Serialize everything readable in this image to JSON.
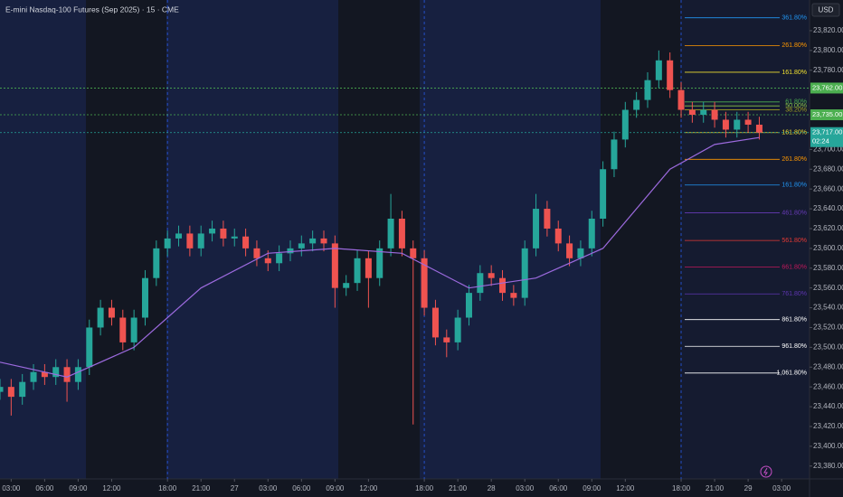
{
  "chart_data": {
    "type": "candlestick",
    "title": "E-mini Nasdaq-100 Futures (Sep 2025) · 15 · CME",
    "currency": "USD",
    "up_color": "#26a69a",
    "down_color": "#ef5350",
    "x": [
      -1,
      0,
      1,
      2,
      3,
      4,
      5,
      6,
      7,
      8,
      9,
      10,
      11,
      12,
      13,
      14,
      15,
      16,
      17,
      18,
      19,
      20,
      21,
      22,
      23,
      24,
      25,
      26,
      27,
      28,
      29,
      30,
      31,
      32,
      33,
      34,
      35,
      36,
      37,
      38,
      39,
      40,
      41,
      42,
      43,
      44,
      45,
      46,
      47,
      48,
      49,
      50,
      51,
      52,
      53,
      54,
      55,
      56,
      57,
      58,
      59,
      60,
      61,
      62,
      63,
      64,
      65,
      66,
      67
    ],
    "open": [
      23455,
      23460,
      23450,
      23465,
      23475,
      23470,
      23480,
      23465,
      23480,
      23520,
      23540,
      23530,
      23505,
      23530,
      23570,
      23600,
      23610,
      23615,
      23600,
      23615,
      23620,
      23610,
      23612,
      23600,
      23590,
      23585,
      23595,
      23600,
      23605,
      23610,
      23605,
      23560,
      23565,
      23590,
      23570,
      23600,
      23630,
      23600,
      23590,
      23540,
      23510,
      23505,
      23530,
      23555,
      23575,
      23570,
      23555,
      23550,
      23600,
      23640,
      23620,
      23605,
      23590,
      23600,
      23630,
      23680,
      23710,
      23740,
      23750,
      23770,
      23790,
      23760,
      23740,
      23735,
      23740,
      23730,
      23720,
      23730,
      23725
    ],
    "high": [
      23468,
      23468,
      23473,
      23483,
      23483,
      23488,
      23488,
      23488,
      23528,
      23548,
      23548,
      23538,
      23538,
      23578,
      23608,
      23618,
      23623,
      23623,
      23623,
      23628,
      23628,
      23620,
      23620,
      23608,
      23598,
      23603,
      23608,
      23613,
      23618,
      23618,
      23613,
      23573,
      23598,
      23598,
      23608,
      23655,
      23638,
      23608,
      23598,
      23548,
      23518,
      23538,
      23563,
      23583,
      23583,
      23578,
      23563,
      23608,
      23655,
      23648,
      23628,
      23613,
      23608,
      23638,
      23688,
      23718,
      23748,
      23758,
      23778,
      23800,
      23798,
      23768,
      23748,
      23748,
      23748,
      23738,
      23738,
      23738,
      23733
    ],
    "low": [
      23447,
      23431,
      23442,
      23457,
      23462,
      23462,
      23445,
      23457,
      23472,
      23512,
      23522,
      23497,
      23497,
      23522,
      23562,
      23592,
      23602,
      23592,
      23592,
      23607,
      23602,
      23602,
      23592,
      23582,
      23577,
      23577,
      23587,
      23592,
      23597,
      23597,
      23540,
      23552,
      23557,
      23540,
      23562,
      23592,
      23592,
      23422,
      23532,
      23502,
      23490,
      23497,
      23522,
      23547,
      23562,
      23547,
      23542,
      23542,
      23592,
      23612,
      23597,
      23582,
      23582,
      23592,
      23622,
      23672,
      23702,
      23732,
      23742,
      23762,
      23752,
      23732,
      23727,
      23727,
      23722,
      23712,
      23712,
      23717,
      23710
    ],
    "close": [
      23460,
      23450,
      23465,
      23475,
      23470,
      23480,
      23465,
      23480,
      23520,
      23540,
      23530,
      23505,
      23530,
      23570,
      23600,
      23610,
      23615,
      23600,
      23615,
      23620,
      23610,
      23612,
      23600,
      23590,
      23585,
      23595,
      23600,
      23605,
      23610,
      23605,
      23560,
      23565,
      23590,
      23570,
      23600,
      23630,
      23600,
      23590,
      23540,
      23510,
      23505,
      23530,
      23555,
      23575,
      23570,
      23555,
      23550,
      23600,
      23640,
      23620,
      23605,
      23590,
      23600,
      23630,
      23680,
      23710,
      23740,
      23750,
      23770,
      23790,
      23760,
      23740,
      23735,
      23740,
      23730,
      23720,
      23730,
      23725,
      23717
    ],
    "moving_average": {
      "color": "#9c6ade",
      "x": [
        -1,
        5,
        11,
        17,
        23,
        29,
        35,
        41,
        47,
        53,
        59,
        63,
        67
      ],
      "values": [
        23485,
        23470,
        23500,
        23560,
        23595,
        23600,
        23595,
        23560,
        23570,
        23600,
        23680,
        23705,
        23712
      ]
    },
    "xlim": [
      -1,
      71.5
    ],
    "ylim": [
      23367,
      23851
    ],
    "xticks": [
      {
        "value": 0,
        "label": "03:00"
      },
      {
        "value": 3,
        "label": "06:00"
      },
      {
        "value": 6,
        "label": "09:00"
      },
      {
        "value": 9,
        "label": "12:00"
      },
      {
        "value": 14,
        "label": "18:00"
      },
      {
        "value": 17,
        "label": "21:00"
      },
      {
        "value": 20,
        "label": "27"
      },
      {
        "value": 23,
        "label": "03:00"
      },
      {
        "value": 26,
        "label": "06:00"
      },
      {
        "value": 29,
        "label": "09:00"
      },
      {
        "value": 32,
        "label": "12:00"
      },
      {
        "value": 37,
        "label": "18:00"
      },
      {
        "value": 40,
        "label": "21:00"
      },
      {
        "value": 43,
        "label": "28"
      },
      {
        "value": 46,
        "label": "03:00"
      },
      {
        "value": 49,
        "label": "06:00"
      },
      {
        "value": 52,
        "label": "09:00"
      },
      {
        "value": 55,
        "label": "12:00"
      },
      {
        "value": 60,
        "label": "18:00"
      },
      {
        "value": 63,
        "label": "21:00"
      },
      {
        "value": 66,
        "label": "29"
      },
      {
        "value": 69,
        "label": "03:00"
      }
    ],
    "yticks": [
      {
        "value": 23380,
        "label": "23,380.00"
      },
      {
        "value": 23400,
        "label": "23,400.00"
      },
      {
        "value": 23420,
        "label": "23,420.00"
      },
      {
        "value": 23440,
        "label": "23,440.00"
      },
      {
        "value": 23460,
        "label": "23,460.00"
      },
      {
        "value": 23480,
        "label": "23,480.00"
      },
      {
        "value": 23500,
        "label": "23,500.00"
      },
      {
        "value": 23520,
        "label": "23,520.00"
      },
      {
        "value": 23540,
        "label": "23,540.00"
      },
      {
        "value": 23560,
        "label": "23,560.00"
      },
      {
        "value": 23580,
        "label": "23,580.00"
      },
      {
        "value": 23600,
        "label": "23,600.00"
      },
      {
        "value": 23620,
        "label": "23,620.00"
      },
      {
        "value": 23640,
        "label": "23,640.00"
      },
      {
        "value": 23660,
        "label": "23,660.00"
      },
      {
        "value": 23680,
        "label": "23,680.00"
      },
      {
        "value": 23700,
        "label": "23,700.00"
      },
      {
        "value": 23780,
        "label": "23,780.00"
      },
      {
        "value": 23800,
        "label": "23,800.00"
      },
      {
        "value": 23820,
        "label": "23,820.00"
      }
    ],
    "session_breaks": [
      14,
      37,
      60
    ],
    "price_lines": [
      {
        "value": 23762,
        "label": "23,762.00",
        "color": "#4caf50"
      },
      {
        "value": 23735,
        "label": "23,735.00",
        "color": "#4caf50"
      },
      {
        "value": 23717,
        "label": "23,717.00",
        "color": "#26a69a",
        "countdown": "02:24"
      }
    ],
    "fib_levels": [
      {
        "value": 23833,
        "label": "361.80%",
        "color": "#2196f3"
      },
      {
        "value": 23805,
        "label": "261.80%",
        "color": "#ff9800"
      },
      {
        "value": 23778,
        "label": "161.80%",
        "color": "#f0e030"
      },
      {
        "value": 23748,
        "label": "61.80%",
        "color": "#4caf50"
      },
      {
        "value": 23744,
        "label": "50.00%",
        "color": "#8bc34a"
      },
      {
        "value": 23740,
        "label": "38.20%",
        "color": "#a0a020"
      },
      {
        "value": 23717,
        "label": "161.80%",
        "color": "#f0e030"
      },
      {
        "value": 23690,
        "label": "261.80%",
        "color": "#ff9800"
      },
      {
        "value": 23664,
        "label": "161.80%",
        "color": "#2196f3"
      },
      {
        "value": 23636,
        "label": "461.80%",
        "color": "#673ab7"
      },
      {
        "value": 23608,
        "label": "561.80%",
        "color": "#e53935"
      },
      {
        "value": 23581,
        "label": "661.80%",
        "color": "#c2185b"
      },
      {
        "value": 23554,
        "label": "761.80%",
        "color": "#5e35b1"
      },
      {
        "value": 23528,
        "label": "861.80%",
        "color": "#ffffff"
      },
      {
        "value": 23501,
        "label": "961.80%",
        "color": "#ffffff"
      },
      {
        "value": 23474,
        "label": "1,061.80%",
        "color": "#ffffff"
      }
    ]
  }
}
